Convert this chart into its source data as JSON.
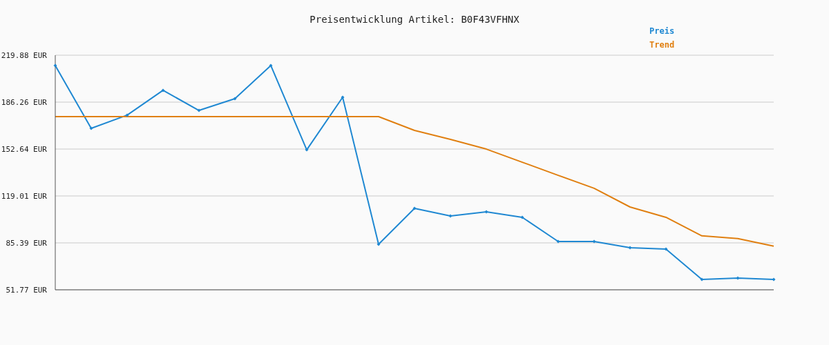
{
  "chart_data": {
    "type": "line",
    "title": "Preisentwicklung Artikel: B0F43VFHNX",
    "categories": [
      null,
      null,
      null,
      null,
      null,
      null,
      null,
      null,
      null,
      null,
      null,
      null,
      null,
      null,
      null,
      null,
      null,
      null,
      null,
      null,
      null
    ],
    "series": [
      {
        "name": "Preis",
        "color": "#1f88d2",
        "marker": "diamond",
        "values": [
          212.5,
          167.5,
          176.9,
          194.7,
          180.3,
          188.7,
          212.5,
          152.1,
          189.7,
          84.4,
          110.1,
          104.7,
          107.6,
          103.7,
          86.4,
          86.4,
          81.9,
          80.9,
          59.2,
          60.2,
          59.2
        ]
      },
      {
        "name": "Trend",
        "color": "#e07f10",
        "marker": "none",
        "values": [
          175.9,
          175.9,
          175.9,
          175.9,
          175.9,
          175.9,
          175.9,
          175.9,
          175.9,
          175.9,
          166.0,
          159.6,
          152.6,
          143.2,
          133.8,
          124.5,
          111.1,
          103.7,
          90.4,
          88.5,
          83.0
        ]
      }
    ],
    "ylim": [
      51.77,
      219.88
    ],
    "yticks": [
      {
        "value": 51.77,
        "label": "51.77 EUR"
      },
      {
        "value": 85.39,
        "label": "85.39 EUR"
      },
      {
        "value": 119.01,
        "label": "119.01 EUR"
      },
      {
        "value": 152.64,
        "label": "152.64 EUR"
      },
      {
        "value": 186.26,
        "label": "186.26 EUR"
      },
      {
        "value": 219.88,
        "label": "219.88 EUR"
      }
    ],
    "grid": "y",
    "legend": "top right",
    "tick_labels": "y",
    "line_style": "solid"
  }
}
